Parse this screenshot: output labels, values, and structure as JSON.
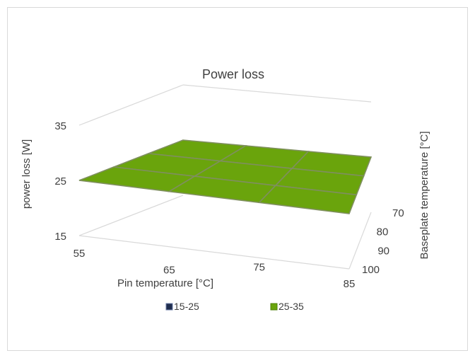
{
  "chart_data": {
    "type": "surface",
    "title": "Power loss",
    "xlabel": "Pin temperature [°C]",
    "ylabel": "Baseplate temperature [°C]",
    "zlabel": "power loss [W]",
    "x": [
      55,
      65,
      75,
      85
    ],
    "y": [
      70,
      80,
      90,
      100
    ],
    "z_ticks": [
      15,
      25,
      35
    ],
    "zlim": [
      15,
      35
    ],
    "z": [
      [
        25,
        25,
        25,
        25
      ],
      [
        25,
        25,
        25,
        25
      ],
      [
        25,
        25,
        25,
        25
      ],
      [
        25,
        25,
        25,
        25
      ]
    ],
    "legend_position": "bottom",
    "legend": [
      {
        "label": "15-25",
        "color": "#1F2D4E"
      },
      {
        "label": "25-35",
        "color": "#6AA40C"
      }
    ],
    "surface_color": "#6AA40C",
    "grid_line_color": "#7F8F5F"
  }
}
